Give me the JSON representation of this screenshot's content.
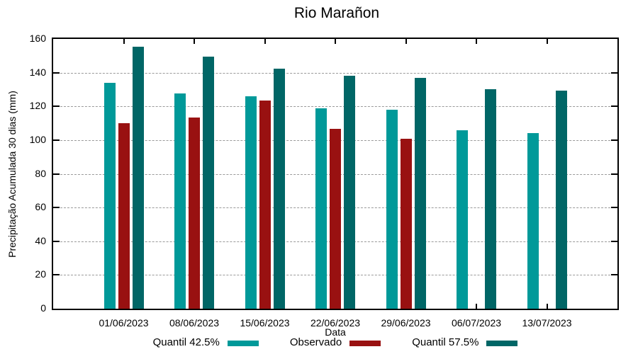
{
  "chart_data": {
    "type": "bar",
    "title": "Rio Marañon",
    "xlabel": "Data",
    "ylabel": "Precipitação Acumulada 30 dias (mm)",
    "categories": [
      "01/06/2023",
      "08/06/2023",
      "15/06/2023",
      "22/06/2023",
      "29/06/2023",
      "06/07/2023",
      "13/07/2023"
    ],
    "series": [
      {
        "name": "Quantil 42.5%",
        "color": "#009999",
        "values": [
          134,
          127.5,
          126,
          119,
          118,
          106,
          104
        ]
      },
      {
        "name": "Observado",
        "color": "#991111",
        "values": [
          110,
          113.5,
          123.5,
          106.5,
          101,
          null,
          null
        ]
      },
      {
        "name": "Quantil 57.5%",
        "color": "#006666",
        "values": [
          155.5,
          149.5,
          142.5,
          138,
          137,
          130,
          129.5
        ]
      }
    ],
    "ylim": [
      0,
      160
    ],
    "ytick_step": 20,
    "yticks": [
      0,
      20,
      40,
      60,
      80,
      100,
      120,
      140,
      160
    ],
    "grid": true,
    "grid_color": "#9a9a9a",
    "legend_position": "bottom",
    "axis_color": "#000000",
    "background_color": "#ffffff"
  }
}
